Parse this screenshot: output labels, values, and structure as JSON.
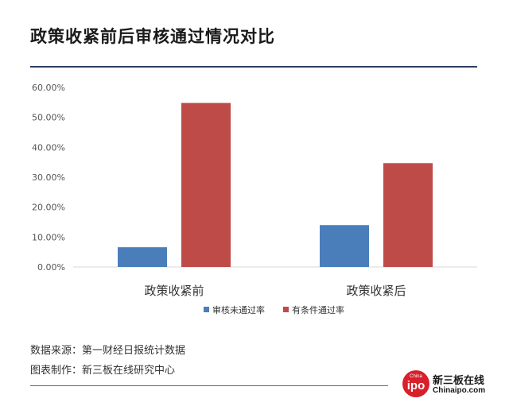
{
  "page": {
    "title": "政策收紧前后审核通过情况对比",
    "source_line": "数据来源：第一财经日报统计数据",
    "maker_line": "图表制作：新三板在线研究中心",
    "logo": {
      "badge_small": "China",
      "badge_big": "ipo",
      "name_cn": "新三板在线",
      "name_en": "Chinaipo.com"
    }
  },
  "colors": {
    "title_rule": "#2b3f63",
    "series_blue": "#4a7ebb",
    "series_red": "#be4b48",
    "logo_red": "#d7202c"
  },
  "chart_data": {
    "type": "bar",
    "title": "政策收紧前后审核通过情况对比",
    "categories": [
      "政策收紧前",
      "政策收紧后"
    ],
    "series": [
      {
        "name": "审核未通过率",
        "values": [
          6.6,
          14.0
        ],
        "color": "#4a7ebb"
      },
      {
        "name": "有条件通过率",
        "values": [
          54.8,
          34.7
        ],
        "color": "#be4b48"
      }
    ],
    "yticks": [
      "0.00%",
      "10.00%",
      "20.00%",
      "30.00%",
      "40.00%",
      "50.00%",
      "60.00%"
    ],
    "ylim": [
      0,
      60
    ],
    "grid": false,
    "legend": "bottom-center"
  }
}
